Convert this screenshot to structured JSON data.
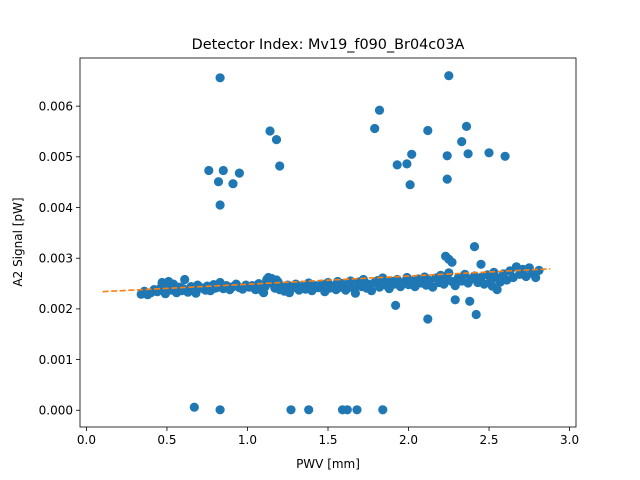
{
  "chart_data": {
    "type": "scatter",
    "title": "Detector Index: Mv19_f090_Br04c03A",
    "xlabel": "PWV [mm]",
    "ylabel": "A2 Signal [pW]",
    "xlim": [
      -0.04,
      3.04
    ],
    "ylim": [
      -0.00033,
      0.00695
    ],
    "x_ticks": [
      0.0,
      0.5,
      1.0,
      1.5,
      2.0,
      2.5,
      3.0
    ],
    "x_tick_labels": [
      "0.0",
      "0.5",
      "1.0",
      "1.5",
      "2.0",
      "2.5",
      "3.0"
    ],
    "y_ticks": [
      0.0,
      0.001,
      0.002,
      0.003,
      0.004,
      0.005,
      0.006
    ],
    "y_tick_labels": [
      "0.000",
      "0.001",
      "0.002",
      "0.003",
      "0.004",
      "0.005",
      "0.006"
    ],
    "series": [
      {
        "name": "data",
        "marker": "circle",
        "color": "#1f77b4",
        "points": [
          [
            0.34,
            0.00229
          ],
          [
            0.36,
            0.00235
          ],
          [
            0.38,
            0.00228
          ],
          [
            0.4,
            0.00232
          ],
          [
            0.42,
            0.00238
          ],
          [
            0.44,
            0.00234
          ],
          [
            0.46,
            0.00241
          ],
          [
            0.47,
            0.00252
          ],
          [
            0.49,
            0.0023
          ],
          [
            0.5,
            0.00245
          ],
          [
            0.51,
            0.00254
          ],
          [
            0.53,
            0.00237
          ],
          [
            0.54,
            0.00249
          ],
          [
            0.56,
            0.00232
          ],
          [
            0.58,
            0.00243
          ],
          [
            0.59,
            0.00236
          ],
          [
            0.6,
            0.0024
          ],
          [
            0.61,
            0.00258
          ],
          [
            0.63,
            0.00233
          ],
          [
            0.65,
            0.00244
          ],
          [
            0.66,
            0.00238
          ],
          [
            0.68,
            0.00231
          ],
          [
            0.69,
            0.00247
          ],
          [
            0.71,
            0.00242
          ],
          [
            0.73,
            0.00239
          ],
          [
            0.74,
            0.00237
          ],
          [
            0.75,
            0.00245
          ],
          [
            0.77,
            0.00236
          ],
          [
            0.79,
            0.00248
          ],
          [
            0.8,
            0.00241
          ],
          [
            0.82,
            0.00243
          ],
          [
            0.83,
            0.00252
          ],
          [
            0.85,
            0.0024
          ],
          [
            0.87,
            0.00246
          ],
          [
            0.89,
            0.00238
          ],
          [
            0.91,
            0.00244
          ],
          [
            0.93,
            0.00249
          ],
          [
            0.95,
            0.00242
          ],
          [
            0.97,
            0.00239
          ],
          [
            0.99,
            0.00247
          ],
          [
            1.01,
            0.00243
          ],
          [
            1.03,
            0.00246
          ],
          [
            1.05,
            0.00238
          ],
          [
            1.07,
            0.0025
          ],
          [
            1.09,
            0.00236
          ],
          [
            1.1,
            0.00232
          ],
          [
            1.11,
            0.00244
          ],
          [
            1.12,
            0.00258
          ],
          [
            1.13,
            0.00262
          ],
          [
            1.14,
            0.00255
          ],
          [
            1.15,
            0.0026
          ],
          [
            1.16,
            0.00249
          ],
          [
            1.17,
            0.00241
          ],
          [
            1.18,
            0.00257
          ],
          [
            1.19,
            0.00253
          ],
          [
            1.2,
            0.00238
          ],
          [
            1.22,
            0.00243
          ],
          [
            1.23,
            0.00235
          ],
          [
            1.25,
            0.00247
          ],
          [
            1.26,
            0.00232
          ],
          [
            1.28,
            0.00242
          ],
          [
            1.3,
            0.00249
          ],
          [
            1.32,
            0.00237
          ],
          [
            1.34,
            0.00244
          ],
          [
            1.36,
            0.00239
          ],
          [
            1.38,
            0.00251
          ],
          [
            1.4,
            0.00236
          ],
          [
            1.42,
            0.00246
          ],
          [
            1.44,
            0.00242
          ],
          [
            1.46,
            0.00249
          ],
          [
            1.48,
            0.00234
          ],
          [
            1.5,
            0.00252
          ],
          [
            1.51,
            0.00241
          ],
          [
            1.53,
            0.00245
          ],
          [
            1.55,
            0.00238
          ],
          [
            1.56,
            0.00254
          ],
          [
            1.58,
            0.00243
          ],
          [
            1.59,
            0.0025
          ],
          [
            1.61,
            0.00237
          ],
          [
            1.63,
            0.00247
          ],
          [
            1.64,
            0.00255
          ],
          [
            1.66,
            0.0024
          ],
          [
            1.67,
            0.00231
          ],
          [
            1.69,
            0.00253
          ],
          [
            1.71,
            0.00244
          ],
          [
            1.72,
            0.00258
          ],
          [
            1.74,
            0.00241
          ],
          [
            1.75,
            0.00249
          ],
          [
            1.77,
            0.00236
          ],
          [
            1.79,
            0.00252
          ],
          [
            1.81,
            0.00256
          ],
          [
            1.82,
            0.00243
          ],
          [
            1.84,
            0.00261
          ],
          [
            1.86,
            0.00247
          ],
          [
            1.88,
            0.0024
          ],
          [
            1.89,
            0.00255
          ],
          [
            1.91,
            0.00249
          ],
          [
            1.93,
            0.00258
          ],
          [
            1.95,
            0.00244
          ],
          [
            1.97,
            0.00252
          ],
          [
            1.99,
            0.00262
          ],
          [
            2.0,
            0.00248
          ],
          [
            2.02,
            0.00255
          ],
          [
            2.04,
            0.00244
          ],
          [
            2.06,
            0.00259
          ],
          [
            2.08,
            0.00251
          ],
          [
            2.1,
            0.00263
          ],
          [
            2.11,
            0.00247
          ],
          [
            2.13,
            0.00256
          ],
          [
            2.15,
            0.00243
          ],
          [
            2.17,
            0.00261
          ],
          [
            2.19,
            0.00252
          ],
          [
            2.2,
            0.00266
          ],
          [
            2.22,
            0.00249
          ],
          [
            2.24,
            0.00258
          ],
          [
            2.25,
            0.00271
          ],
          [
            2.27,
            0.00254
          ],
          [
            2.29,
            0.00246
          ],
          [
            2.31,
            0.00262
          ],
          [
            2.33,
            0.00255
          ],
          [
            2.35,
            0.00268
          ],
          [
            2.37,
            0.00251
          ],
          [
            2.39,
            0.00259
          ],
          [
            2.41,
            0.00265
          ],
          [
            2.43,
            0.00252
          ],
          [
            2.45,
            0.00262
          ],
          [
            2.47,
            0.00249
          ],
          [
            2.49,
            0.00267
          ],
          [
            2.51,
            0.00256
          ],
          [
            2.53,
            0.00272
          ],
          [
            2.55,
            0.00261
          ],
          [
            2.57,
            0.00253
          ],
          [
            2.59,
            0.00269
          ],
          [
            2.61,
            0.00257
          ],
          [
            2.63,
            0.00275
          ],
          [
            2.65,
            0.00262
          ],
          [
            2.67,
            0.00283
          ],
          [
            2.69,
            0.00268
          ],
          [
            2.71,
            0.00278
          ],
          [
            2.73,
            0.00264
          ],
          [
            2.75,
            0.00281
          ],
          [
            2.77,
            0.0027
          ],
          [
            2.79,
            0.00262
          ],
          [
            2.81,
            0.00276
          ],
          [
            2.23,
            0.00304
          ],
          [
            2.25,
            0.00298
          ],
          [
            2.27,
            0.00292
          ],
          [
            2.41,
            0.00323
          ],
          [
            2.45,
            0.00288
          ],
          [
            2.29,
            0.00218
          ],
          [
            2.38,
            0.00215
          ],
          [
            2.12,
            0.0018
          ],
          [
            1.92,
            0.00207
          ],
          [
            2.42,
            0.00189
          ],
          [
            2.52,
            0.00245
          ],
          [
            2.55,
            0.00238
          ],
          [
            1.2,
            0.00482
          ],
          [
            1.18,
            0.00534
          ],
          [
            1.14,
            0.00551
          ],
          [
            0.83,
            0.00656
          ],
          [
            0.76,
            0.00473
          ],
          [
            0.85,
            0.00473
          ],
          [
            0.82,
            0.00451
          ],
          [
            0.91,
            0.00447
          ],
          [
            0.95,
            0.00468
          ],
          [
            0.83,
            0.00405
          ],
          [
            1.79,
            0.00556
          ],
          [
            1.82,
            0.00592
          ],
          [
            1.93,
            0.00484
          ],
          [
            1.99,
            0.00486
          ],
          [
            2.01,
            0.00445
          ],
          [
            2.02,
            0.00505
          ],
          [
            2.12,
            0.00552
          ],
          [
            2.24,
            0.00502
          ],
          [
            2.25,
            0.0066
          ],
          [
            2.24,
            0.00456
          ],
          [
            2.33,
            0.0053
          ],
          [
            2.36,
            0.0056
          ],
          [
            2.37,
            0.00506
          ],
          [
            2.5,
            0.00508
          ],
          [
            2.6,
            0.00501
          ],
          [
            0.67,
            6e-05
          ],
          [
            0.83,
            1e-05
          ],
          [
            1.27,
            1e-05
          ],
          [
            1.38,
            1e-05
          ],
          [
            1.59,
            1e-05
          ],
          [
            1.62,
            1e-05
          ],
          [
            1.68,
            1e-05
          ],
          [
            1.84,
            1e-05
          ]
        ]
      },
      {
        "name": "fit",
        "line_style": "dashed",
        "color": "#ff7f0e",
        "points": [
          [
            0.1,
            0.00234
          ],
          [
            2.88,
            0.00279
          ]
        ]
      }
    ]
  }
}
